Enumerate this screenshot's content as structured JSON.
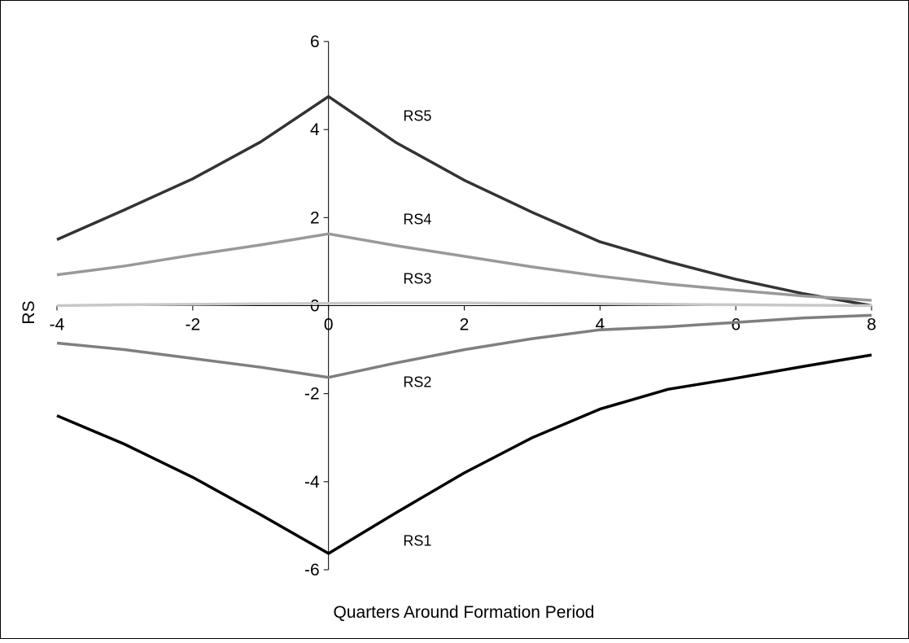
{
  "chart_data": {
    "type": "line",
    "title": "",
    "xlabel": "Quarters Around Formation Period",
    "ylabel": "RS",
    "xlim": [
      -4,
      8
    ],
    "ylim": [
      -6,
      6
    ],
    "x_ticks": [
      "-4",
      "-2",
      "0",
      "2",
      "4",
      "6",
      "8"
    ],
    "y_ticks": [
      "6",
      "4",
      "2",
      "0",
      "-2",
      "-4",
      "-6"
    ],
    "grid": false,
    "legend": "none",
    "x": [
      -4,
      -3,
      -2,
      -1,
      0,
      1,
      2,
      3,
      4,
      5,
      6,
      7,
      8
    ],
    "series": [
      {
        "name": "RS5",
        "color": "#333333",
        "values": [
          1.5,
          2.18,
          2.88,
          3.72,
          4.75,
          3.7,
          2.85,
          2.12,
          1.45,
          1.0,
          0.6,
          0.27,
          0.0
        ]
      },
      {
        "name": "RS4",
        "color": "#999999",
        "values": [
          0.7,
          0.9,
          1.15,
          1.38,
          1.63,
          1.36,
          1.12,
          0.88,
          0.67,
          0.49,
          0.35,
          0.22,
          0.12
        ]
      },
      {
        "name": "RS3",
        "color": "#c8c8c8",
        "values": [
          0.0,
          0.02,
          0.03,
          0.04,
          0.05,
          0.06,
          0.06,
          0.05,
          0.04,
          0.03,
          0.02,
          0.01,
          0.0
        ]
      },
      {
        "name": "RS2",
        "color": "#7f7f7f",
        "values": [
          -0.85,
          -1.0,
          -1.2,
          -1.4,
          -1.63,
          -1.3,
          -1.0,
          -0.75,
          -0.55,
          -0.48,
          -0.38,
          -0.28,
          -0.22
        ]
      },
      {
        "name": "RS1",
        "color": "#000000",
        "values": [
          -2.5,
          -3.15,
          -3.9,
          -4.75,
          -5.63,
          -4.7,
          -3.8,
          -3.0,
          -2.35,
          -1.9,
          -1.65,
          -1.38,
          -1.12
        ]
      }
    ],
    "annotations": [
      {
        "text": "RS5",
        "x": 1.1,
        "y": 4.2
      },
      {
        "text": "RS4",
        "x": 1.1,
        "y": 1.85
      },
      {
        "text": "RS3",
        "x": 1.1,
        "y": 0.5
      },
      {
        "text": "RS2",
        "x": 1.1,
        "y": -1.85
      },
      {
        "text": "RS1",
        "x": 1.1,
        "y": -5.45
      }
    ]
  }
}
